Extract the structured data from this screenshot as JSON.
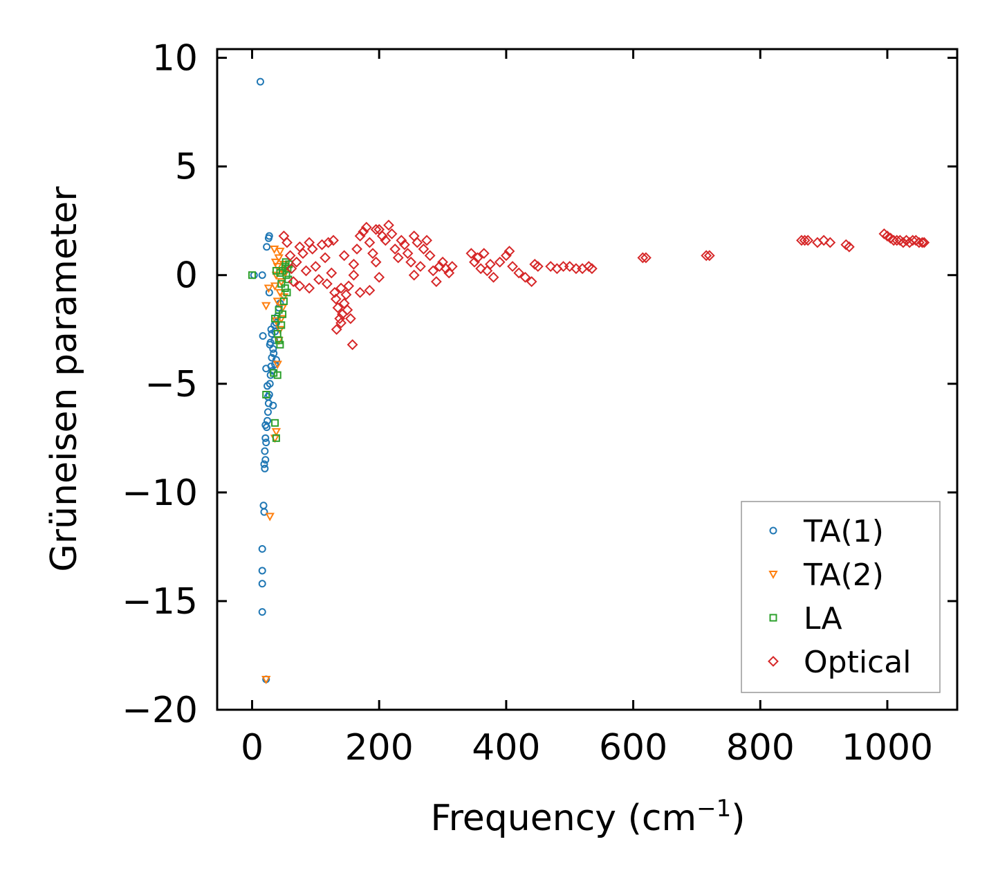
{
  "chart_data": {
    "type": "scatter",
    "title": "",
    "xlabel": "Frequency (cm",
    "xlabel_superscript": "−1",
    "xlabel_suffix": ")",
    "ylabel": "Grüneisen parameter",
    "xlim": [
      -55,
      1110
    ],
    "ylim": [
      -20,
      10.4
    ],
    "xticks": [
      0,
      200,
      400,
      600,
      800,
      1000
    ],
    "xtick_labels": [
      "0",
      "200",
      "400",
      "600",
      "800",
      "1000"
    ],
    "yticks": [
      10,
      5,
      0,
      -5,
      -10,
      -15,
      -20
    ],
    "ytick_labels": [
      "10",
      "5",
      "0",
      "−5",
      "−10",
      "−15",
      "−20"
    ],
    "legend_position": "lower-right",
    "series": [
      {
        "name": "TA(1)",
        "marker": "circle",
        "color": "#1f77b4",
        "points": [
          [
            13,
            8.9
          ],
          [
            22,
            -18.6
          ],
          [
            16,
            -15.5
          ],
          [
            16,
            -14.2
          ],
          [
            16,
            -13.6
          ],
          [
            16,
            -12.6
          ],
          [
            18,
            -10.6
          ],
          [
            19,
            -10.9
          ],
          [
            20,
            -8.9
          ],
          [
            19,
            -8.7
          ],
          [
            21,
            -8.5
          ],
          [
            20,
            -8.1
          ],
          [
            22,
            -7.7
          ],
          [
            21,
            -7.5
          ],
          [
            23,
            -7.0
          ],
          [
            24,
            -6.7
          ],
          [
            25,
            -6.3
          ],
          [
            26,
            -5.9
          ],
          [
            27,
            -5.5
          ],
          [
            28,
            -5.0
          ],
          [
            29,
            -4.6
          ],
          [
            30,
            -4.2
          ],
          [
            31,
            -3.8
          ],
          [
            33,
            -3.4
          ],
          [
            35,
            -3.0
          ],
          [
            36,
            -2.6
          ],
          [
            38,
            -2.2
          ],
          [
            40,
            -1.9
          ],
          [
            42,
            -1.5
          ],
          [
            17,
            -2.8
          ],
          [
            22,
            -4.3
          ],
          [
            24,
            -5.1
          ],
          [
            32,
            -4.4
          ],
          [
            34,
            -3.6
          ],
          [
            36,
            -4.1
          ],
          [
            30,
            -2.5
          ],
          [
            28,
            -3.2
          ],
          [
            27,
            -0.8
          ],
          [
            16,
            0.0
          ],
          [
            23,
            1.3
          ],
          [
            26,
            1.7
          ],
          [
            27,
            1.8
          ],
          [
            3,
            0.0
          ],
          [
            44,
            -1.3
          ],
          [
            38,
            -3.9
          ],
          [
            33,
            -6.0
          ],
          [
            21,
            -6.9
          ],
          [
            25,
            -5.6
          ],
          [
            29,
            -3.1
          ],
          [
            31,
            -2.7
          ],
          [
            35,
            -2.3
          ]
        ]
      },
      {
        "name": "TA(2)",
        "marker": "triangle-down",
        "color": "#ff7f0e",
        "points": [
          [
            22,
            -18.6
          ],
          [
            28,
            -11.1
          ],
          [
            36,
            -7.5
          ],
          [
            38,
            -7.2
          ],
          [
            40,
            -4.1
          ],
          [
            42,
            -3.0
          ],
          [
            44,
            -2.5
          ],
          [
            46,
            -2.0
          ],
          [
            48,
            -1.5
          ],
          [
            50,
            -1.0
          ],
          [
            36,
            -0.5
          ],
          [
            38,
            0.0
          ],
          [
            40,
            0.4
          ],
          [
            42,
            0.8
          ],
          [
            44,
            1.1
          ],
          [
            35,
            1.2
          ],
          [
            22,
            -1.4
          ],
          [
            26,
            -0.6
          ],
          [
            46,
            -0.3
          ],
          [
            48,
            0.2
          ],
          [
            50,
            0.5
          ],
          [
            44,
            -0.8
          ],
          [
            40,
            -1.2
          ],
          [
            38,
            -2.1
          ],
          [
            37,
            0.6
          ],
          [
            52,
            0.1
          ]
        ]
      },
      {
        "name": "LA",
        "marker": "square",
        "color": "#2ca02c",
        "points": [
          [
            0,
            0.0
          ],
          [
            22,
            -5.5
          ],
          [
            36,
            -6.8
          ],
          [
            38,
            -7.5
          ],
          [
            34,
            -4.5
          ],
          [
            40,
            -4.6
          ],
          [
            36,
            -2.0
          ],
          [
            42,
            -3.0
          ],
          [
            44,
            -3.2
          ],
          [
            46,
            -2.3
          ],
          [
            48,
            -1.8
          ],
          [
            50,
            -1.2
          ],
          [
            52,
            -0.6
          ],
          [
            54,
            0.0
          ],
          [
            56,
            0.3
          ],
          [
            48,
            0.2
          ],
          [
            52,
            0.4
          ],
          [
            46,
            -0.4
          ],
          [
            55,
            -0.8
          ],
          [
            57,
            -0.2
          ],
          [
            44,
            0.1
          ],
          [
            42,
            -1.6
          ],
          [
            40,
            -2.7
          ],
          [
            38,
            0.2
          ],
          [
            53,
            0.6
          ],
          [
            58,
            0.5
          ]
        ]
      },
      {
        "name": "Optical",
        "marker": "diamond",
        "color": "#d62728",
        "points": [
          [
            50,
            1.8
          ],
          [
            55,
            1.5
          ],
          [
            60,
            0.9
          ],
          [
            62,
            0.3
          ],
          [
            65,
            -0.3
          ],
          [
            70,
            0.6
          ],
          [
            75,
            -0.5
          ],
          [
            80,
            1.0
          ],
          [
            85,
            0.2
          ],
          [
            90,
            -0.6
          ],
          [
            95,
            1.2
          ],
          [
            100,
            0.4
          ],
          [
            105,
            -0.2
          ],
          [
            110,
            1.4
          ],
          [
            115,
            0.8
          ],
          [
            118,
            -0.4
          ],
          [
            120,
            1.5
          ],
          [
            125,
            0.1
          ],
          [
            130,
            -0.8
          ],
          [
            132,
            -1.1
          ],
          [
            135,
            -1.5
          ],
          [
            138,
            -2.0
          ],
          [
            140,
            -2.2
          ],
          [
            142,
            -1.8
          ],
          [
            145,
            -1.3
          ],
          [
            148,
            -0.9
          ],
          [
            150,
            -1.6
          ],
          [
            152,
            -0.5
          ],
          [
            155,
            -2.0
          ],
          [
            158,
            -3.2
          ],
          [
            133,
            -2.5
          ],
          [
            160,
            0.5
          ],
          [
            165,
            1.2
          ],
          [
            170,
            1.8
          ],
          [
            175,
            2.0
          ],
          [
            180,
            2.2
          ],
          [
            185,
            1.5
          ],
          [
            190,
            1.0
          ],
          [
            195,
            0.6
          ],
          [
            200,
            2.1
          ],
          [
            205,
            1.8
          ],
          [
            210,
            1.6
          ],
          [
            215,
            2.3
          ],
          [
            220,
            1.9
          ],
          [
            225,
            1.2
          ],
          [
            230,
            0.8
          ],
          [
            235,
            1.6
          ],
          [
            240,
            1.4
          ],
          [
            245,
            1.0
          ],
          [
            250,
            0.6
          ],
          [
            255,
            1.8
          ],
          [
            260,
            1.5
          ],
          [
            265,
            0.4
          ],
          [
            270,
            1.2
          ],
          [
            275,
            1.6
          ],
          [
            280,
            0.9
          ],
          [
            285,
            0.2
          ],
          [
            290,
            -0.3
          ],
          [
            295,
            0.4
          ],
          [
            300,
            0.6
          ],
          [
            305,
            0.3
          ],
          [
            310,
            0.1
          ],
          [
            315,
            0.4
          ],
          [
            345,
            1.0
          ],
          [
            350,
            0.6
          ],
          [
            355,
            0.8
          ],
          [
            360,
            0.3
          ],
          [
            365,
            1.0
          ],
          [
            370,
            0.2
          ],
          [
            375,
            0.5
          ],
          [
            380,
            -0.1
          ],
          [
            390,
            0.6
          ],
          [
            400,
            0.9
          ],
          [
            405,
            1.1
          ],
          [
            410,
            0.4
          ],
          [
            420,
            0.1
          ],
          [
            430,
            -0.1
          ],
          [
            440,
            -0.3
          ],
          [
            445,
            0.5
          ],
          [
            450,
            0.4
          ],
          [
            470,
            0.4
          ],
          [
            480,
            0.3
          ],
          [
            490,
            0.4
          ],
          [
            500,
            0.4
          ],
          [
            510,
            0.3
          ],
          [
            520,
            0.3
          ],
          [
            530,
            0.4
          ],
          [
            535,
            0.3
          ],
          [
            615,
            0.8
          ],
          [
            620,
            0.8
          ],
          [
            715,
            0.9
          ],
          [
            720,
            0.9
          ],
          [
            865,
            1.6
          ],
          [
            870,
            1.6
          ],
          [
            875,
            1.6
          ],
          [
            890,
            1.5
          ],
          [
            900,
            1.6
          ],
          [
            910,
            1.5
          ],
          [
            935,
            1.4
          ],
          [
            940,
            1.3
          ],
          [
            995,
            1.9
          ],
          [
            1000,
            1.8
          ],
          [
            1005,
            1.7
          ],
          [
            1010,
            1.6
          ],
          [
            1015,
            1.6
          ],
          [
            1020,
            1.6
          ],
          [
            1025,
            1.5
          ],
          [
            1030,
            1.6
          ],
          [
            1035,
            1.5
          ],
          [
            1040,
            1.6
          ],
          [
            1045,
            1.6
          ],
          [
            1050,
            1.5
          ],
          [
            1055,
            1.5
          ],
          [
            1058,
            1.5
          ],
          [
            160,
            0.0
          ],
          [
            170,
            -0.8
          ],
          [
            185,
            -0.7
          ],
          [
            200,
            -0.1
          ],
          [
            75,
            1.3
          ],
          [
            90,
            1.5
          ],
          [
            140,
            -0.6
          ],
          [
            145,
            0.9
          ],
          [
            128,
            1.6
          ],
          [
            195,
            2.1
          ],
          [
            255,
            0.0
          ]
        ]
      }
    ]
  }
}
